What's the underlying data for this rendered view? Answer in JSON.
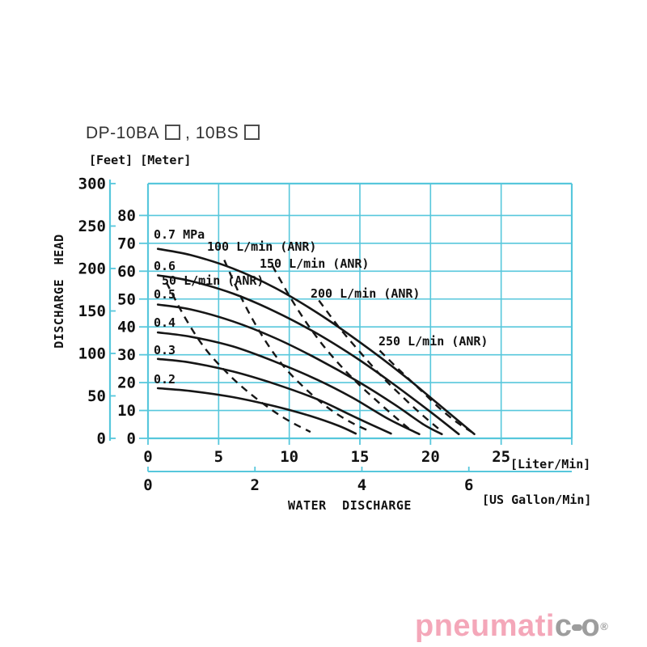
{
  "page": {
    "title": {
      "part1": "DP-10BA",
      "part2": ", 10BS"
    },
    "watermark": {
      "text_pink": "pneumati",
      "text_gray_c": "c",
      "text_gray_o": "o",
      "registered": "®"
    }
  },
  "colors": {
    "grid_cyan": "#57c7dc",
    "curve_black": "#161616",
    "text_black": "#111111",
    "logo_pink": "#f4a7b9",
    "logo_gray": "#9d9d9d"
  },
  "chart_data": {
    "type": "line",
    "xlabel": "WATER DISCHARGE",
    "ylabel": "DISCHARGE HEAD",
    "x_units": [
      "[Liter/Min]",
      "[US Gallon/Min]"
    ],
    "y_units": [
      "[Feet]",
      "[Meter]"
    ],
    "x_ticks_liter_per_min": [
      0,
      5,
      10,
      15,
      20,
      25
    ],
    "x_ticks_us_gallon_per_min": [
      0,
      2,
      4,
      6
    ],
    "y_ticks_feet": [
      300,
      250,
      200,
      150,
      100,
      50,
      0
    ],
    "y_ticks_meter": [
      80,
      70,
      60,
      50,
      40,
      30,
      20,
      10,
      0
    ],
    "xlim_liter_per_min": [
      0,
      30
    ],
    "ylim_meter": [
      0,
      91.44
    ],
    "grid": true,
    "legend_position": "inline-labels",
    "pressure_series": [
      {
        "label": "0.7 MPa",
        "style": "solid",
        "points": [
          [
            0.7,
            68
          ],
          [
            3,
            65.8
          ],
          [
            6,
            61
          ],
          [
            9,
            54
          ],
          [
            12,
            45
          ],
          [
            15,
            34.5
          ],
          [
            18,
            23
          ],
          [
            20.5,
            12.5
          ],
          [
            23.1,
            1.5
          ]
        ]
      },
      {
        "label": "0.6",
        "style": "solid",
        "points": [
          [
            0.7,
            58.5
          ],
          [
            3,
            56.5
          ],
          [
            6,
            52
          ],
          [
            9,
            45.5
          ],
          [
            12,
            37.5
          ],
          [
            15,
            28
          ],
          [
            17.5,
            19
          ],
          [
            20,
            9.5
          ],
          [
            22,
            1.5
          ]
        ]
      },
      {
        "label": "0.5",
        "style": "solid",
        "points": [
          [
            0.7,
            48
          ],
          [
            3,
            46.3
          ],
          [
            6,
            42
          ],
          [
            9,
            36
          ],
          [
            12,
            28.5
          ],
          [
            15,
            20
          ],
          [
            17.5,
            12
          ],
          [
            19.5,
            5
          ],
          [
            20.8,
            1.5
          ]
        ]
      },
      {
        "label": "0.4",
        "style": "solid",
        "points": [
          [
            0.7,
            38
          ],
          [
            3,
            36.5
          ],
          [
            6,
            33
          ],
          [
            9,
            27.5
          ],
          [
            12,
            21
          ],
          [
            14.5,
            14.5
          ],
          [
            17,
            7
          ],
          [
            19.2,
            1.5
          ]
        ]
      },
      {
        "label": "0.3",
        "style": "solid",
        "points": [
          [
            0.7,
            28.5
          ],
          [
            3,
            27.2
          ],
          [
            6,
            24
          ],
          [
            9,
            19.5
          ],
          [
            12,
            14
          ],
          [
            14.5,
            8
          ],
          [
            16.2,
            4
          ],
          [
            17.2,
            1.7
          ]
        ]
      },
      {
        "label": "0.2",
        "style": "solid",
        "points": [
          [
            0.7,
            18
          ],
          [
            3,
            17
          ],
          [
            6,
            14.8
          ],
          [
            9,
            11.5
          ],
          [
            11.5,
            8
          ],
          [
            13.5,
            4.5
          ],
          [
            14.7,
            1.7
          ]
        ]
      }
    ],
    "air_consumption_series": [
      {
        "label": "50 L/min (ANR)",
        "style": "dashed",
        "points": [
          [
            1.3,
            56
          ],
          [
            2.6,
            43.5
          ],
          [
            4,
            32.5
          ],
          [
            5.5,
            24
          ],
          [
            7,
            17
          ],
          [
            8.6,
            10.8
          ],
          [
            10,
            6.2
          ],
          [
            11.5,
            2.3
          ]
        ]
      },
      {
        "label": "100 L/min (ANR)",
        "style": "dashed",
        "points": [
          [
            5.4,
            64
          ],
          [
            6.6,
            50.5
          ],
          [
            8,
            37.5
          ],
          [
            9.5,
            26.5
          ],
          [
            11,
            18.5
          ],
          [
            12.6,
            11.5
          ],
          [
            14.2,
            6.2
          ],
          [
            15.8,
            2.3
          ]
        ]
      },
      {
        "label": "150 L/min (ANR)",
        "style": "dashed",
        "points": [
          [
            8.8,
            62
          ],
          [
            10.2,
            49.5
          ],
          [
            11.7,
            38
          ],
          [
            13.2,
            28.5
          ],
          [
            14.8,
            20
          ],
          [
            16.3,
            13
          ],
          [
            17.6,
            7.2
          ],
          [
            18.7,
            2.5
          ]
        ]
      },
      {
        "label": "200 L/min (ANR)",
        "style": "dashed",
        "points": [
          [
            12.1,
            49.5
          ],
          [
            13.5,
            40
          ],
          [
            15,
            31
          ],
          [
            16.5,
            22.5
          ],
          [
            18,
            15
          ],
          [
            19.5,
            8
          ],
          [
            20.8,
            2.5
          ]
        ]
      },
      {
        "label": "250 L/min (ANR)",
        "style": "dashed",
        "points": [
          [
            16.4,
            31.5
          ],
          [
            17.8,
            24.5
          ],
          [
            19.2,
            17.8
          ],
          [
            20.6,
            11
          ],
          [
            21.8,
            6
          ],
          [
            22.9,
            2.3
          ]
        ]
      }
    ]
  }
}
